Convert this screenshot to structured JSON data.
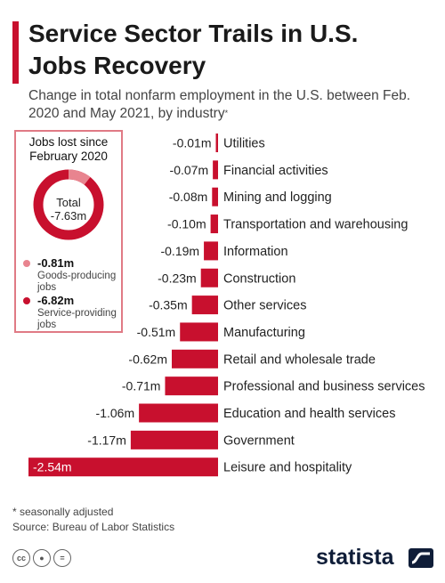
{
  "header": {
    "title": "Service Sector Trails in U.S. Jobs Recovery",
    "subtitle": "Change in total nonfarm employment in the U.S. between Feb. 2020 and May 2021, by industry",
    "subtitle_mark": "*"
  },
  "summary": {
    "title": "Jobs lost since February 2020",
    "total_label": "Total",
    "total_value": "-7.63m",
    "total": -7.63,
    "items": [
      {
        "value": "-0.81m",
        "label": "Goods-producing jobs",
        "amount": -0.81,
        "color": "#e8848f"
      },
      {
        "value": "-6.82m",
        "label": "Service-providing jobs",
        "amount": -6.82,
        "color": "#c8102e"
      }
    ]
  },
  "chart_data": {
    "type": "bar",
    "orientation": "horizontal",
    "categories": [
      "Utilities",
      "Financial activities",
      "Mining and logging",
      "Transportation and warehousing",
      "Information",
      "Construction",
      "Other services",
      "Manufacturing",
      "Retail and wholesale trade",
      "Professional and business services",
      "Education and health services",
      "Government",
      "Leisure and hospitality"
    ],
    "values": [
      -0.01,
      -0.07,
      -0.08,
      -0.1,
      -0.19,
      -0.23,
      -0.35,
      -0.51,
      -0.62,
      -0.71,
      -1.06,
      -1.17,
      -2.54
    ],
    "value_labels": [
      "-0.01m",
      "-0.07m",
      "-0.08m",
      "-0.10m",
      "-0.19m",
      "-0.23m",
      "-0.35m",
      "-0.51m",
      "-0.62m",
      "-0.71m",
      "-1.06m",
      "-1.17m",
      "-2.54m"
    ],
    "bar_color": "#c8102e",
    "xlim": [
      -2.54,
      0
    ],
    "grid": false
  },
  "footer": {
    "note": "* seasonally adjusted",
    "source": "Source: Bureau of Labor Statistics",
    "brand": "statista",
    "license_icons": [
      "cc-icon",
      "by-icon",
      "nd-icon"
    ]
  }
}
